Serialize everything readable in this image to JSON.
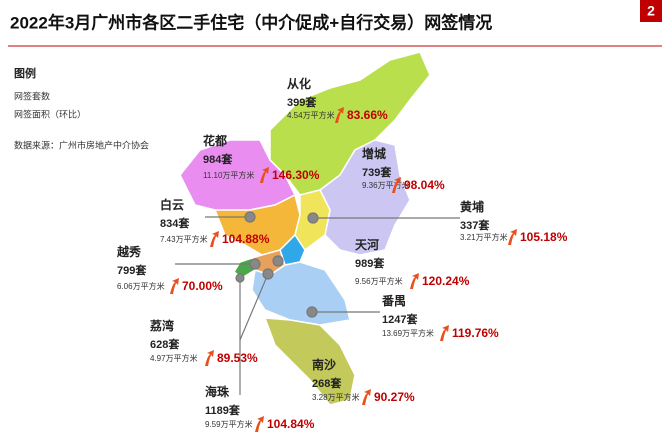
{
  "header": {
    "title": "2022年3月广州市各区二手住宅（中介促成+自行交易）网签情况",
    "page": "2"
  },
  "legend": {
    "title": "图例",
    "items": [
      "网签套数",
      "网签面积（环比）"
    ],
    "source": "数据来源：广州市房地产中介协会"
  },
  "districts": [
    {
      "name": "从化",
      "count": "399套",
      "area": "4.54万平方米",
      "change": "83.66%"
    },
    {
      "name": "花都",
      "count": "984套",
      "area": "11.10万平方米",
      "change": "146.30%"
    },
    {
      "name": "增城",
      "count": "739套",
      "area": "9.36万平方米",
      "change": "98.04%"
    },
    {
      "name": "白云",
      "count": "834套",
      "area": "7.43万平方米",
      "change": "104.88%"
    },
    {
      "name": "黄埔",
      "count": "337套",
      "area": "3.21万平方米",
      "change": "105.18%"
    },
    {
      "name": "天河",
      "count": "989套",
      "area": "9.56万平方米",
      "change": "120.24%"
    },
    {
      "name": "越秀",
      "count": "799套",
      "area": "6.06万平方米",
      "change": "70.00%"
    },
    {
      "name": "荔湾",
      "count": "628套",
      "area": "4.97万平方米",
      "change": "89.53%"
    },
    {
      "name": "番禺",
      "count": "1247套",
      "area": "13.69万平方米",
      "change": "119.76%"
    },
    {
      "name": "南沙",
      "count": "268套",
      "area": "3.28万平方米",
      "change": "90.27%"
    },
    {
      "name": "海珠",
      "count": "1189套",
      "area": "9.59万平方米",
      "change": "104.84%"
    }
  ]
}
